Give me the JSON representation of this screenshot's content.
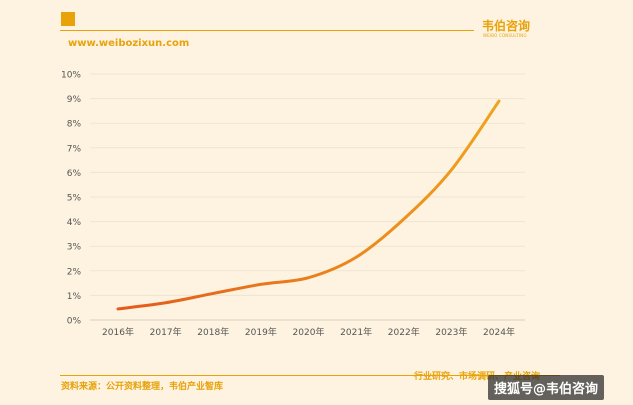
{
  "header": {
    "site_url": "www.weibozixun.com",
    "brand_name": "韦伯咨询",
    "brand_sub": "WEIBO CONSULTING"
  },
  "footer": {
    "source": "资料来源：公开资料整理，韦伯产业智库",
    "tags": "行业研究、市场调研、产业咨询",
    "watermark": "搜狐号@韦伯咨询"
  },
  "colors": {
    "background": "#fdf3e0",
    "accent": "#e8a20a",
    "line_start": "#e35a1d",
    "line_end": "#f0a31c"
  },
  "chart_data": {
    "type": "line",
    "categories": [
      "2016年",
      "2017年",
      "2018年",
      "2019年",
      "2020年",
      "2021年",
      "2022年",
      "2023年",
      "2024年"
    ],
    "series": [
      {
        "values": [
          0.45,
          0.7,
          1.08,
          1.45,
          1.72,
          2.55,
          4.1,
          6.1,
          8.9
        ]
      }
    ],
    "y_ticks": [
      "0%",
      "1%",
      "2%",
      "3%",
      "4%",
      "5%",
      "6%",
      "7%",
      "8%",
      "9%",
      "10%"
    ],
    "ylim": [
      0,
      10
    ],
    "y_unit": "%",
    "grid": true,
    "title": "",
    "xlabel": "",
    "ylabel": ""
  }
}
